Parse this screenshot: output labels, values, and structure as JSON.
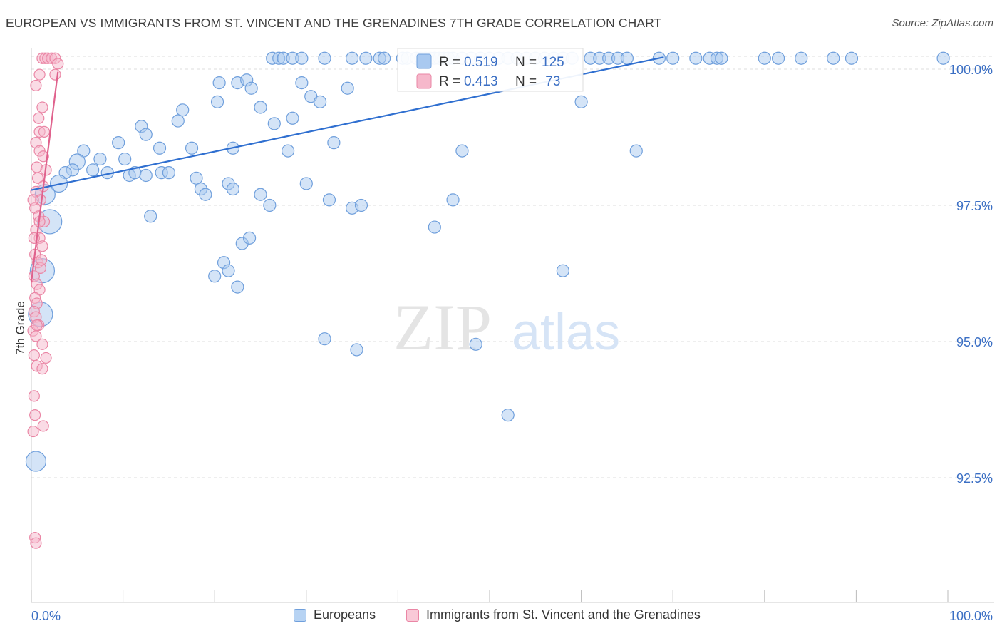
{
  "title": "EUROPEAN VS IMMIGRANTS FROM ST. VINCENT AND THE GRENADINES 7TH GRADE CORRELATION CHART",
  "source": "Source: ZipAtlas.com",
  "watermark": {
    "zip": "ZIP",
    "atlas": "atlas"
  },
  "colors": {
    "blue_fill": "#a9c9f0",
    "blue_stroke": "#6f9fdc",
    "blue_line": "#2f6fd0",
    "pink_fill": "#f6b8cb",
    "pink_stroke": "#ea86a5",
    "pink_line": "#e0628d",
    "axis_text": "#3b6fc4",
    "grid": "#dddddd"
  },
  "stats_legend": [
    {
      "series": "Europeans",
      "r_label": "R = ",
      "r_value": "0.519",
      "n_label": "N = ",
      "n_value": "125"
    },
    {
      "series": "Immigrants from St. Vincent and the Grenadines",
      "r_label": "R = ",
      "r_value": "0.413",
      "n_label": "N = ",
      "n_value": " 73"
    }
  ],
  "chart_data": {
    "type": "scatter",
    "title": "EUROPEAN VS IMMIGRANTS FROM ST. VINCENT AND THE GRENADINES 7TH GRADE CORRELATION CHART",
    "xlabel": "",
    "ylabel": "7th Grade",
    "xlim": [
      0,
      100
    ],
    "ylim": [
      90.0,
      100.5
    ],
    "x_tick_labels": [
      "0.0%",
      "100.0%"
    ],
    "y_ticks": [
      92.5,
      95.0,
      97.5,
      100.0
    ],
    "y_tick_labels": [
      "92.5%",
      "95.0%",
      "97.5%",
      "100.0%"
    ],
    "grid": true,
    "legend": [
      "Europeans",
      "Immigrants from St. Vincent and the Grenadines"
    ],
    "series": [
      {
        "name": "Europeans",
        "R": 0.519,
        "N": 125,
        "trendline": [
          [
            0,
            97.78
          ],
          [
            69,
            100.22
          ]
        ],
        "points": [
          [
            26.3,
            100.2
          ],
          [
            27.0,
            100.2
          ],
          [
            27.5,
            100.2
          ],
          [
            28.5,
            100.2
          ],
          [
            29.5,
            100.2
          ],
          [
            32,
            100.2
          ],
          [
            35,
            100.2
          ],
          [
            36.5,
            100.2
          ],
          [
            38,
            100.2
          ],
          [
            38.5,
            100.2
          ],
          [
            40.5,
            100.2
          ],
          [
            41,
            100.2
          ],
          [
            42,
            100.2
          ],
          [
            42.5,
            100.2
          ],
          [
            43,
            100.2
          ],
          [
            43.5,
            100.2
          ],
          [
            44,
            100.2
          ],
          [
            44.5,
            100.2
          ],
          [
            45,
            100.2
          ],
          [
            45.5,
            100.2
          ],
          [
            46,
            100.2
          ],
          [
            47,
            100.2
          ],
          [
            48,
            100.2
          ],
          [
            49,
            100.2
          ],
          [
            50,
            100.2
          ],
          [
            51,
            100.2
          ],
          [
            52,
            100.2
          ],
          [
            53,
            100.2
          ],
          [
            54,
            100.2
          ],
          [
            55,
            100.2
          ],
          [
            56,
            100.2
          ],
          [
            57,
            100.2
          ],
          [
            58,
            100.2
          ],
          [
            59,
            100.2
          ],
          [
            61,
            100.2
          ],
          [
            62,
            100.2
          ],
          [
            63,
            100.2
          ],
          [
            64,
            100.2
          ],
          [
            65,
            100.2
          ],
          [
            68.5,
            100.2
          ],
          [
            70,
            100.2
          ],
          [
            72.5,
            100.2
          ],
          [
            74,
            100.2
          ],
          [
            74.8,
            100.2
          ],
          [
            75.3,
            100.2
          ],
          [
            80,
            100.2
          ],
          [
            81.5,
            100.2
          ],
          [
            84,
            100.2
          ],
          [
            87.5,
            100.2
          ],
          [
            89.5,
            100.2
          ],
          [
            99.5,
            100.2
          ],
          [
            20.5,
            99.75
          ],
          [
            22.5,
            99.75
          ],
          [
            23.5,
            99.8
          ],
          [
            24,
            99.65
          ],
          [
            29.5,
            99.75
          ],
          [
            30.5,
            99.5
          ],
          [
            31.5,
            99.4
          ],
          [
            25,
            99.3
          ],
          [
            20.3,
            99.4
          ],
          [
            28.5,
            99.1
          ],
          [
            26.5,
            99.0
          ],
          [
            34.5,
            99.65
          ],
          [
            60,
            99.4
          ],
          [
            16.5,
            99.25
          ],
          [
            16,
            99.05
          ],
          [
            12,
            98.95
          ],
          [
            12.5,
            98.8
          ],
          [
            9.5,
            98.65
          ],
          [
            14,
            98.55
          ],
          [
            17.5,
            98.55
          ],
          [
            22,
            98.55
          ],
          [
            28,
            98.5
          ],
          [
            33,
            98.65
          ],
          [
            47,
            98.5
          ],
          [
            66,
            98.5
          ],
          [
            5.7,
            98.5
          ],
          [
            7.5,
            98.35
          ],
          [
            10.2,
            98.35
          ],
          [
            8.3,
            98.1
          ],
          [
            5,
            98.3
          ],
          [
            4.5,
            98.15
          ],
          [
            3.7,
            98.1
          ],
          [
            6.7,
            98.15
          ],
          [
            10.7,
            98.05
          ],
          [
            11.3,
            98.1
          ],
          [
            12.5,
            98.05
          ],
          [
            14.2,
            98.1
          ],
          [
            15,
            98.1
          ],
          [
            18,
            98.0
          ],
          [
            18.5,
            97.8
          ],
          [
            19,
            97.7
          ],
          [
            21.5,
            97.9
          ],
          [
            22,
            97.8
          ],
          [
            25,
            97.7
          ],
          [
            26,
            97.5
          ],
          [
            30,
            97.9
          ],
          [
            32.5,
            97.6
          ],
          [
            35,
            97.45
          ],
          [
            36,
            97.5
          ],
          [
            44,
            97.1
          ],
          [
            46,
            97.6
          ],
          [
            3,
            97.9
          ],
          [
            1.5,
            97.7
          ],
          [
            2,
            97.2
          ],
          [
            1.2,
            96.3
          ],
          [
            1,
            95.5
          ],
          [
            0.5,
            92.8
          ],
          [
            13,
            97.3
          ],
          [
            23,
            96.8
          ],
          [
            23.8,
            96.9
          ],
          [
            21,
            96.45
          ],
          [
            21.5,
            96.3
          ],
          [
            22.5,
            96.0
          ],
          [
            32,
            95.05
          ],
          [
            35.5,
            94.85
          ],
          [
            48.5,
            94.95
          ],
          [
            52,
            93.65
          ],
          [
            58,
            96.3
          ],
          [
            20,
            96.2
          ]
        ],
        "point_sizes": "mostly small; a few large points near x=0"
      },
      {
        "name": "Immigrants from St. Vincent and the Grenadines",
        "R": 0.413,
        "N": 73,
        "trendline": [
          [
            0,
            96.1
          ],
          [
            2.9,
            99.95
          ]
        ],
        "points": [
          [
            1.2,
            100.2
          ],
          [
            1.5,
            100.2
          ],
          [
            1.8,
            100.2
          ],
          [
            2.2,
            100.2
          ],
          [
            2.6,
            100.2
          ],
          [
            2.9,
            100.1
          ],
          [
            2.6,
            99.9
          ],
          [
            0.9,
            99.9
          ],
          [
            0.5,
            99.7
          ],
          [
            1.2,
            99.3
          ],
          [
            0.8,
            99.1
          ],
          [
            0.9,
            98.85
          ],
          [
            1.4,
            98.85
          ],
          [
            0.5,
            98.65
          ],
          [
            0.9,
            98.5
          ],
          [
            1.3,
            98.4
          ],
          [
            0.6,
            98.2
          ],
          [
            1.6,
            98.15
          ],
          [
            0.7,
            98.0
          ],
          [
            1.3,
            97.85
          ],
          [
            0.5,
            97.75
          ],
          [
            1.0,
            97.6
          ],
          [
            0.4,
            97.45
          ],
          [
            0.8,
            97.3
          ],
          [
            1.4,
            97.2
          ],
          [
            0.5,
            97.05
          ],
          [
            0.9,
            96.9
          ],
          [
            1.2,
            96.75
          ],
          [
            0.4,
            96.6
          ],
          [
            0.7,
            96.45
          ],
          [
            1.0,
            96.35
          ],
          [
            0.3,
            96.2
          ],
          [
            0.6,
            96.05
          ],
          [
            0.9,
            95.95
          ],
          [
            0.4,
            95.8
          ],
          [
            0.6,
            95.7
          ],
          [
            0.3,
            95.55
          ],
          [
            0.5,
            95.45
          ],
          [
            0.8,
            95.3
          ],
          [
            0.2,
            95.2
          ],
          [
            0.5,
            95.1
          ],
          [
            1.2,
            94.95
          ],
          [
            0.3,
            94.75
          ],
          [
            1.6,
            94.7
          ],
          [
            0.6,
            94.55
          ],
          [
            1.2,
            94.5
          ],
          [
            0.3,
            94.0
          ],
          [
            0.4,
            93.65
          ],
          [
            1.3,
            93.45
          ],
          [
            0.2,
            93.35
          ],
          [
            0.4,
            91.4
          ],
          [
            0.5,
            91.3
          ],
          [
            0.9,
            97.2
          ],
          [
            1.1,
            96.5
          ],
          [
            0.6,
            95.3
          ],
          [
            0.3,
            96.9
          ],
          [
            0.2,
            97.6
          ]
        ]
      }
    ]
  },
  "axis": {
    "x_left_label": "0.0%",
    "x_right_label": "100.0%",
    "y_label": "7th Grade"
  }
}
